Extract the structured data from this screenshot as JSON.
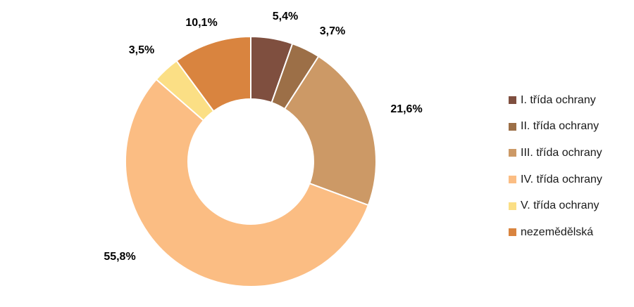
{
  "chart_data": {
    "type": "pie",
    "donut": true,
    "categories": [
      "I. třída ochrany",
      "II. třída ochrany",
      "III. třída ochrany",
      "IV. třída ochrany",
      "V. třída ochrany",
      "nezemědělská"
    ],
    "values": [
      5.4,
      3.7,
      21.6,
      55.8,
      3.5,
      10.1
    ],
    "labels": [
      "5,4%",
      "3,7%",
      "21,6%",
      "55,8%",
      "3,5%",
      "10,1%"
    ],
    "colors": [
      "#7f4f3f",
      "#9c6f47",
      "#cc9966",
      "#fbbd83",
      "#fbdf85",
      "#d9843f"
    ],
    "legend_position": "right"
  }
}
